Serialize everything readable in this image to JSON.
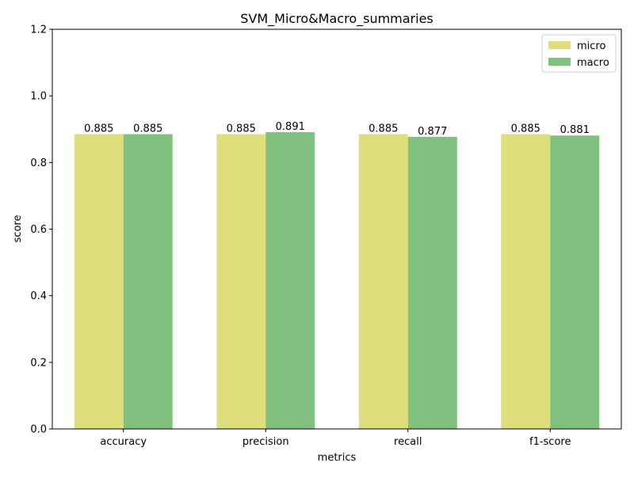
{
  "chart_data": {
    "type": "bar",
    "title": "SVM_Micro&Macro_summaries",
    "xlabel": "metrics",
    "ylabel": "score",
    "categories": [
      "accuracy",
      "precision",
      "recall",
      "f1-score"
    ],
    "series": [
      {
        "name": "micro",
        "values": [
          0.885,
          0.885,
          0.885,
          0.885
        ],
        "color": "#dede7c",
        "labels": [
          "0.885",
          "0.885",
          "0.885",
          "0.885"
        ]
      },
      {
        "name": "macro",
        "values": [
          0.885,
          0.891,
          0.877,
          0.881
        ],
        "color": "#80c180",
        "labels": [
          "0.885",
          "0.891",
          "0.877",
          "0.881"
        ]
      }
    ],
    "ylim": [
      0,
      1.2
    ],
    "yticks": [
      0.0,
      0.2,
      0.4,
      0.6,
      0.8,
      1.0,
      1.2
    ],
    "ytick_labels": [
      "0.0",
      "0.2",
      "0.4",
      "0.6",
      "0.8",
      "1.0",
      "1.2"
    ],
    "grid": false,
    "legend_position": "top-right"
  }
}
